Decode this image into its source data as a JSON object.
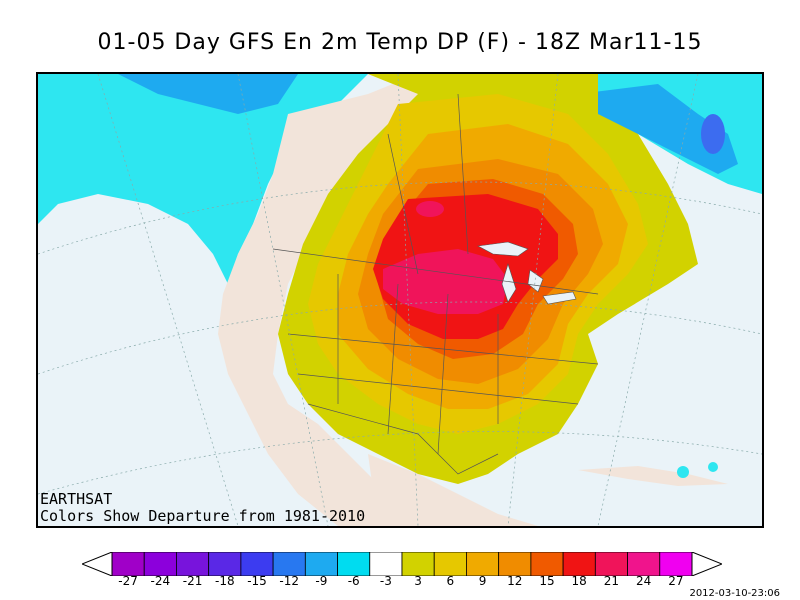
{
  "title": "01-05 Day GFS En 2m Temp DP (F) - 18Z Mar11-15",
  "credit": {
    "brand": "EARTHSAT",
    "subtitle": "Colors Show Departure from 1981-2010"
  },
  "timestamp": "2012-03-10-23:06",
  "legend": {
    "ticks": [
      "-27",
      "-24",
      "-21",
      "-18",
      "-15",
      "-12",
      "-9",
      "-6",
      "-3",
      "3",
      "6",
      "9",
      "12",
      "15",
      "18",
      "21",
      "24",
      "27"
    ],
    "colors": [
      "#a000c8",
      "#8c00dc",
      "#7814dc",
      "#5a28e6",
      "#3c3cf0",
      "#2878f0",
      "#1eaaf0",
      "#00dcf0",
      "#ffffff",
      "#d2d200",
      "#e6c800",
      "#f0aa00",
      "#f08c00",
      "#f05a00",
      "#f01414",
      "#f0145a",
      "#f0148c",
      "#f000f0"
    ]
  },
  "colors": {
    "ocean": "#eaf3f8",
    "land_neutral": "#f2e4da",
    "cold_cyan": "#2ee6f0",
    "cold_blue": "#1eaaf0",
    "anom_3": "#d2d200",
    "anom_6": "#e6c800",
    "anom_9": "#f0aa00",
    "anom_12": "#f08c00",
    "anom_15": "#f05a00",
    "anom_18": "#f01414",
    "anom_21": "#f0145a"
  }
}
